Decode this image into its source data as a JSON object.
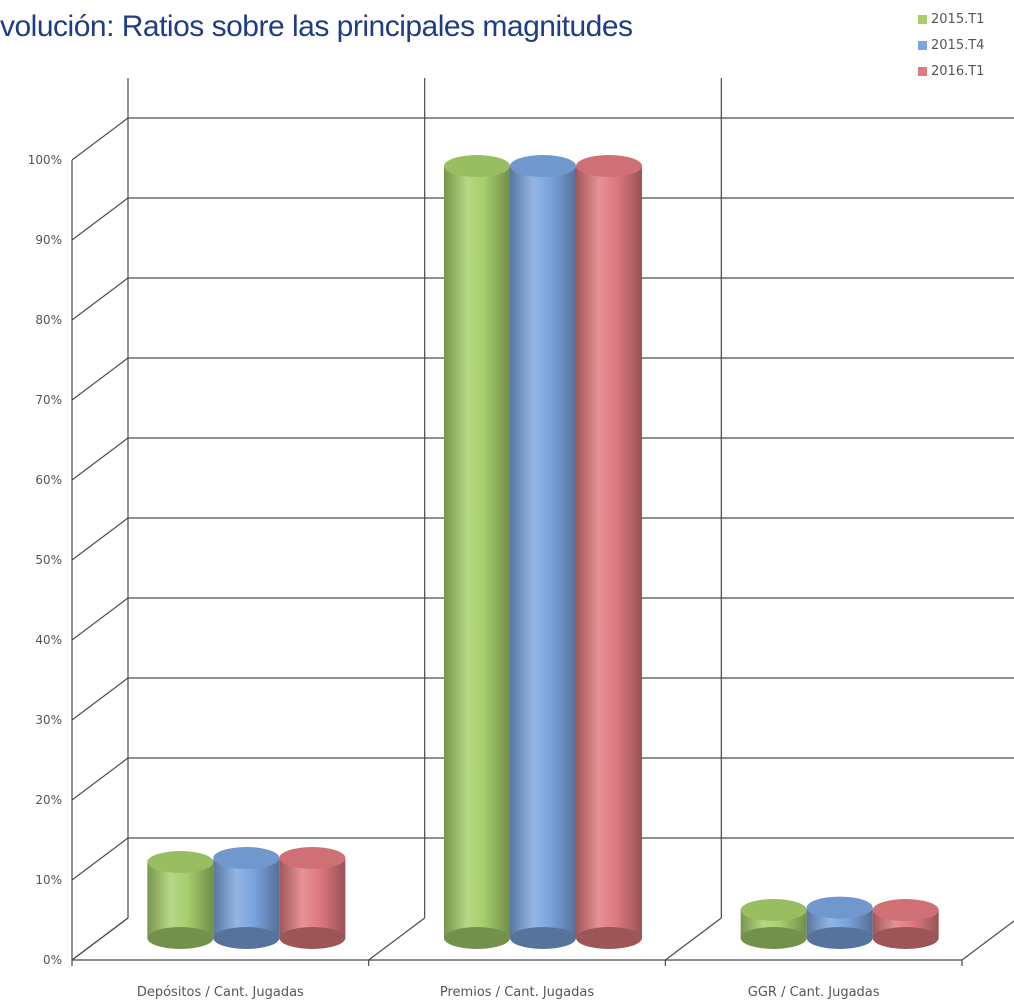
{
  "chart_data": {
    "type": "bar",
    "title": "volución: Ratios sobre las principales magnitudes",
    "categories": [
      "Depósitos / Cant. Jugadas",
      "Premios / Cant. Jugadas",
      "GGR / Cant. Jugadas"
    ],
    "series": [
      {
        "name": "2015.T1",
        "values": [
          9.5,
          96.5,
          3.5
        ],
        "color": "#a6cf6b"
      },
      {
        "name": "2015.T4",
        "values": [
          10.0,
          96.5,
          3.8
        ],
        "color": "#7ba5de"
      },
      {
        "name": "2016.T1",
        "values": [
          10.0,
          96.5,
          3.5
        ],
        "color": "#e07a7e"
      }
    ],
    "yticks": [
      "0%",
      "10%",
      "20%",
      "30%",
      "40%",
      "50%",
      "60%",
      "70%",
      "80%",
      "90%",
      "100%"
    ],
    "ylim": [
      0,
      100
    ],
    "grid": true,
    "legend_position": "top-right",
    "style": "3d-cylinder"
  }
}
